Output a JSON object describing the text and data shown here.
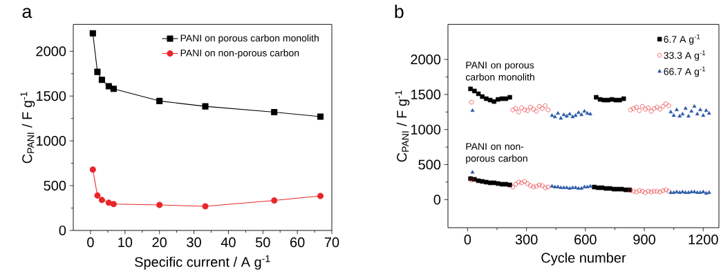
{
  "chart_data": [
    {
      "type": "line",
      "title": "a",
      "xlabel": "Specific current / A g$^{-1}$",
      "ylabel": "C$_{PANI}$ / F g$^{-1}$",
      "xlim": [
        -5,
        70
      ],
      "ylim": [
        0,
        2300
      ],
      "xticks": [
        0,
        10,
        20,
        30,
        40,
        50,
        60,
        70
      ],
      "yticks": [
        0,
        500,
        1000,
        1500,
        2000
      ],
      "legend": "top right",
      "line_style": "solid",
      "series": [
        {
          "name": "PANI on porous carbon monolith",
          "color": "#000000",
          "marker": "square",
          "x": [
            0.67,
            2,
            3.3,
            5.3,
            6.7,
            20,
            33.3,
            53.3,
            66.7
          ],
          "values": [
            2200,
            1770,
            1680,
            1610,
            1580,
            1445,
            1385,
            1320,
            1270
          ]
        },
        {
          "name": "PANI on non-porous carbon",
          "color": "#e8262a",
          "marker": "circle",
          "x": [
            0.67,
            2,
            3.3,
            5.3,
            6.7,
            20,
            33.3,
            53.3,
            66.7
          ],
          "values": [
            680,
            390,
            340,
            310,
            295,
            285,
            270,
            335,
            385
          ]
        }
      ]
    },
    {
      "type": "scatter",
      "title": "b",
      "xlabel": "Cycle number",
      "ylabel": "C$_{PANI}$ / F g$^{-1}$",
      "xlim": [
        -100,
        1280
      ],
      "ylim": [
        -400,
        2500
      ],
      "xticks": [
        0,
        300,
        600,
        900,
        1200
      ],
      "yticks": [
        0,
        500,
        1000,
        1500,
        2000
      ],
      "legend": "top right",
      "annotations": [
        "PANI on porous carbon monolith",
        "PANI on non-porous carbon"
      ],
      "series": [
        {
          "name": "6.7 A g$^{-1}$",
          "color": "#000000",
          "marker": "square",
          "x": [
            15,
            35,
            55,
            75,
            95,
            115,
            135,
            155,
            175,
            195,
            215,
            655,
            675,
            695,
            715,
            735,
            755,
            775,
            795,
            15,
            35,
            55,
            75,
            95,
            115,
            135,
            155,
            175,
            195,
            215,
            645,
            665,
            685,
            705,
            725,
            745,
            765,
            785,
            805,
            825
          ],
          "values": [
            1580,
            1550,
            1510,
            1470,
            1440,
            1420,
            1400,
            1430,
            1440,
            1440,
            1460,
            1460,
            1430,
            1420,
            1420,
            1430,
            1420,
            1420,
            1440,
            300,
            290,
            270,
            260,
            250,
            240,
            240,
            230,
            220,
            220,
            210,
            180,
            170,
            170,
            160,
            160,
            150,
            150,
            150,
            140,
            140
          ]
        },
        {
          "name": "33.3 A g$^{-1}$",
          "color": "#e8262a",
          "marker": "circle",
          "x": [
            20,
            230,
            245,
            260,
            275,
            290,
            305,
            320,
            335,
            350,
            365,
            380,
            395,
            410,
            830,
            845,
            860,
            875,
            890,
            905,
            920,
            935,
            950,
            965,
            980,
            995,
            1010,
            1025,
            20,
            230,
            245,
            260,
            275,
            290,
            305,
            320,
            335,
            350,
            365,
            380,
            395,
            410,
            830,
            845,
            860,
            875,
            890,
            905,
            920,
            935,
            950,
            965,
            980,
            995,
            1010,
            1025
          ],
          "values": [
            1390,
            1280,
            1300,
            1250,
            1310,
            1280,
            1270,
            1320,
            1290,
            1260,
            1330,
            1300,
            1340,
            1280,
            1280,
            1300,
            1320,
            1270,
            1330,
            1290,
            1310,
            1260,
            1300,
            1320,
            1290,
            1330,
            1370,
            1340,
            280,
            180,
            220,
            250,
            240,
            260,
            230,
            200,
            180,
            190,
            210,
            200,
            170,
            180,
            130,
            120,
            110,
            130,
            120,
            100,
            120,
            110,
            120,
            120,
            110,
            130,
            140,
            120
          ]
        },
        {
          "name": "66.7 A g$^{-1}$",
          "color": "#2b59a8",
          "marker": "triangle",
          "x": [
            25,
            430,
            445,
            460,
            475,
            490,
            505,
            520,
            535,
            550,
            565,
            580,
            595,
            610,
            625,
            1035,
            1050,
            1065,
            1080,
            1095,
            1110,
            1125,
            1140,
            1155,
            1170,
            1185,
            1200,
            1215,
            1230,
            25,
            430,
            445,
            460,
            475,
            490,
            505,
            520,
            535,
            550,
            565,
            580,
            595,
            610,
            625,
            1035,
            1050,
            1065,
            1080,
            1095,
            1110,
            1125,
            1140,
            1155,
            1170,
            1185,
            1200,
            1215,
            1230
          ],
          "values": [
            1270,
            1200,
            1180,
            1230,
            1160,
            1210,
            1190,
            1220,
            1180,
            1200,
            1240,
            1210,
            1260,
            1230,
            1220,
            1250,
            1200,
            1280,
            1190,
            1220,
            1300,
            1190,
            1260,
            1330,
            1220,
            1280,
            1200,
            1270,
            1230,
            390,
            190,
            180,
            180,
            170,
            170,
            170,
            160,
            170,
            170,
            160,
            160,
            180,
            180,
            190,
            100,
            100,
            110,
            100,
            110,
            100,
            100,
            110,
            110,
            100,
            100,
            110,
            90,
            100
          ]
        }
      ]
    }
  ]
}
